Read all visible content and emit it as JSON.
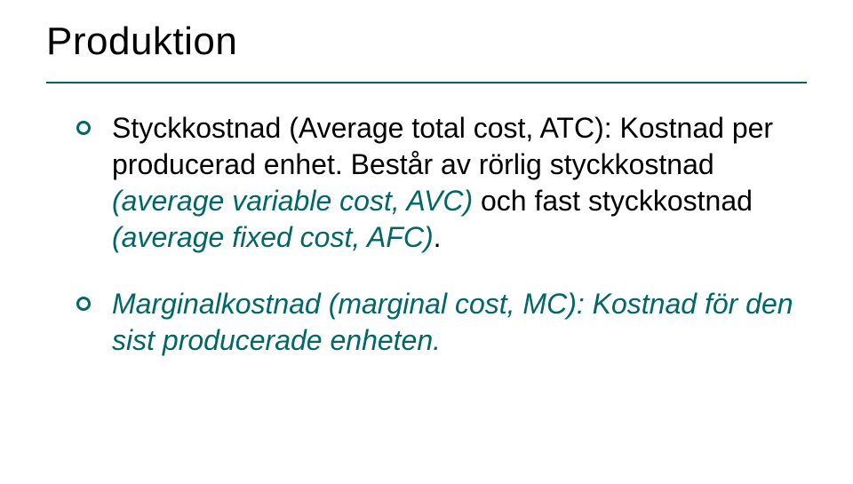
{
  "slide": {
    "title": "Produktion",
    "accent_color": "#006666",
    "text_color": "#000000",
    "background_color": "#ffffff",
    "title_fontsize": 44,
    "body_fontsize": 32,
    "bullets": [
      {
        "runs": [
          {
            "text": "Styckkostnad (Average total cost, ATC): Kostnad per producerad enhet. Består av rörlig styckkostnad ",
            "italic": false
          },
          {
            "text": "(average variable cost, AVC)",
            "italic": true
          },
          {
            "text": " och fast styckkostnad ",
            "italic": false
          },
          {
            "text": "(average fixed cost, AFC)",
            "italic": true
          },
          {
            "text": ".",
            "italic": false
          }
        ]
      },
      {
        "runs": [
          {
            "text": "Marginalkostnad (marginal cost, MC): Kostnad för den sist producerade enheten.",
            "italic": true
          }
        ]
      }
    ]
  }
}
